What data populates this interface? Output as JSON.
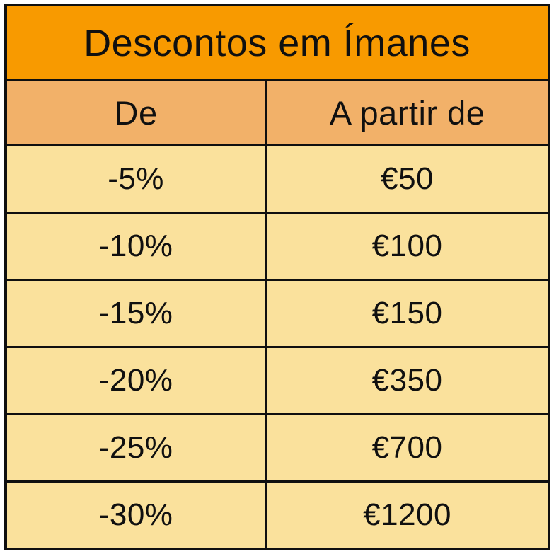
{
  "table": {
    "title": "Descontos em Ímanes",
    "headers": [
      "De",
      "A partir de"
    ],
    "rows": [
      [
        "-5%",
        "€50"
      ],
      [
        "-10%",
        "€100"
      ],
      [
        "-15%",
        "€150"
      ],
      [
        "-20%",
        "€350"
      ],
      [
        "-25%",
        "€700"
      ],
      [
        "-30%",
        "€1200"
      ]
    ]
  },
  "colors": {
    "title_background": "#F89A00",
    "header_background": "#F2B169",
    "row_background": "#FAE19C",
    "border": "#0f0f0f",
    "text": "#101010",
    "page_background": "#ffffff"
  },
  "chart_data": {
    "type": "table",
    "title": "Descontos em Ímanes",
    "columns": [
      "De",
      "A partir de"
    ],
    "rows": [
      [
        "-5%",
        "€50"
      ],
      [
        "-10%",
        "€100"
      ],
      [
        "-15%",
        "€150"
      ],
      [
        "-20%",
        "€350"
      ],
      [
        "-25%",
        "€700"
      ],
      [
        "-30%",
        "€1200"
      ]
    ],
    "discount_percent": [
      -5,
      -10,
      -15,
      -20,
      -25,
      -30
    ],
    "threshold_eur": [
      50,
      100,
      150,
      350,
      700,
      1200
    ]
  }
}
